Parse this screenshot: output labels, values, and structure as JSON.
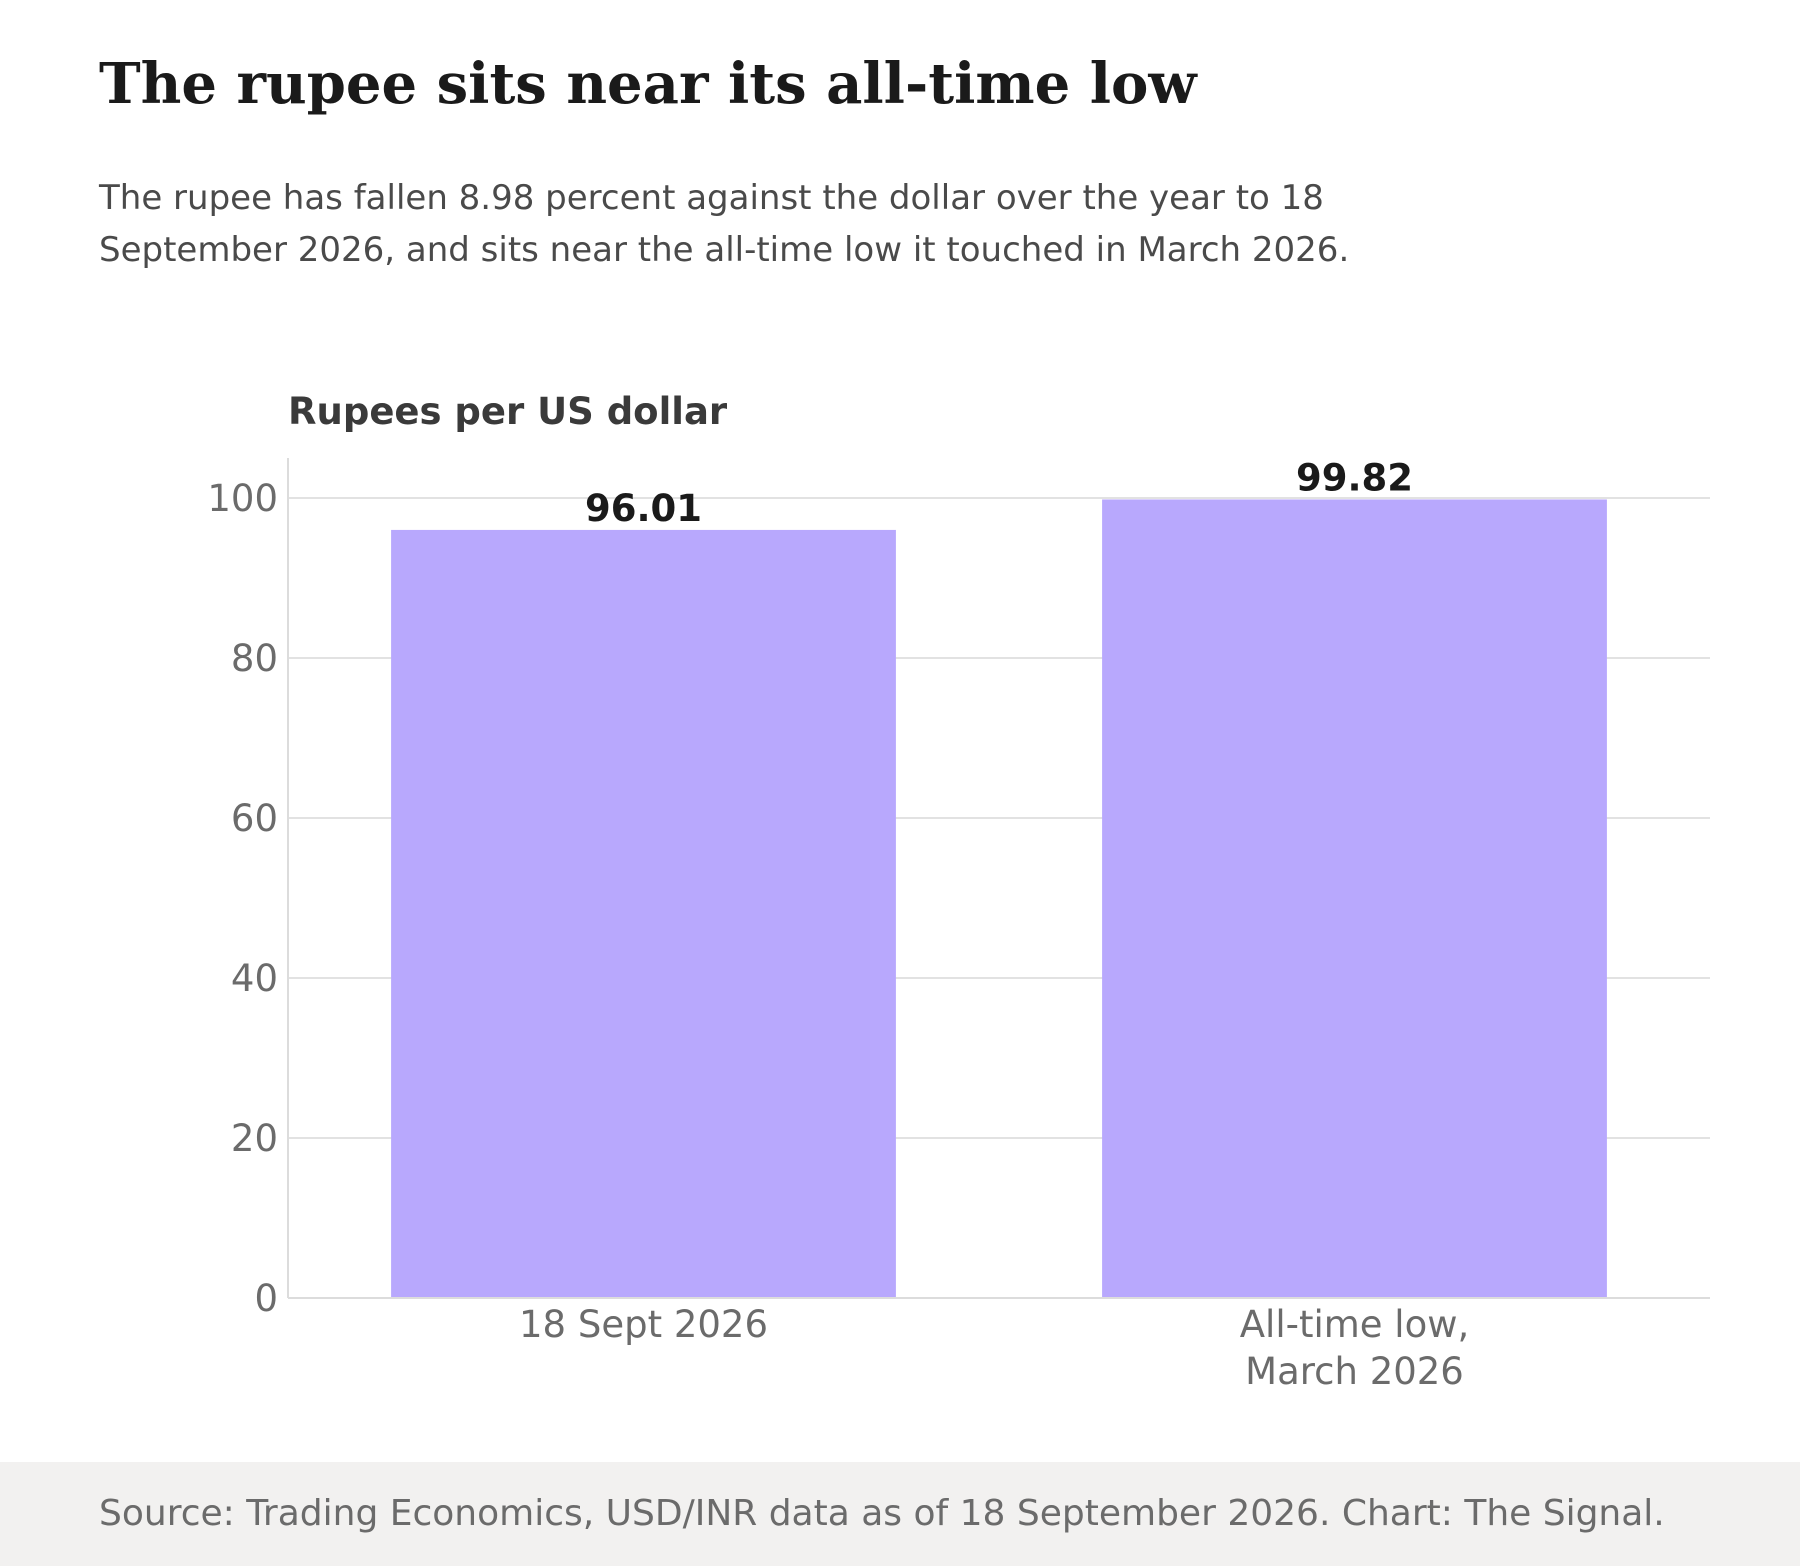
{
  "header": {
    "title": "The rupee sits near its all-time low",
    "subtitle": "The rupee has fallen 8.98 percent against the dollar over the year to 18 September 2026, and sits near the all-time low it touched in March 2026."
  },
  "chart_data": {
    "type": "bar",
    "ylabel": "Rupees per US dollar",
    "xlabel": "",
    "categories": [
      [
        "18 Sept 2026"
      ],
      [
        "All-time low,",
        "March 2026"
      ]
    ],
    "values": [
      96.01,
      99.82
    ],
    "value_labels": [
      "96.01",
      "99.82"
    ],
    "ylim": [
      0,
      105
    ],
    "yticks": [
      0,
      20,
      40,
      60,
      80,
      100
    ],
    "grid": "horizontal",
    "bar_color": "#b8a8fd"
  },
  "footer": {
    "source": "Source: Trading Economics, USD/INR data as of 18 September 2026. Chart: The Signal."
  }
}
